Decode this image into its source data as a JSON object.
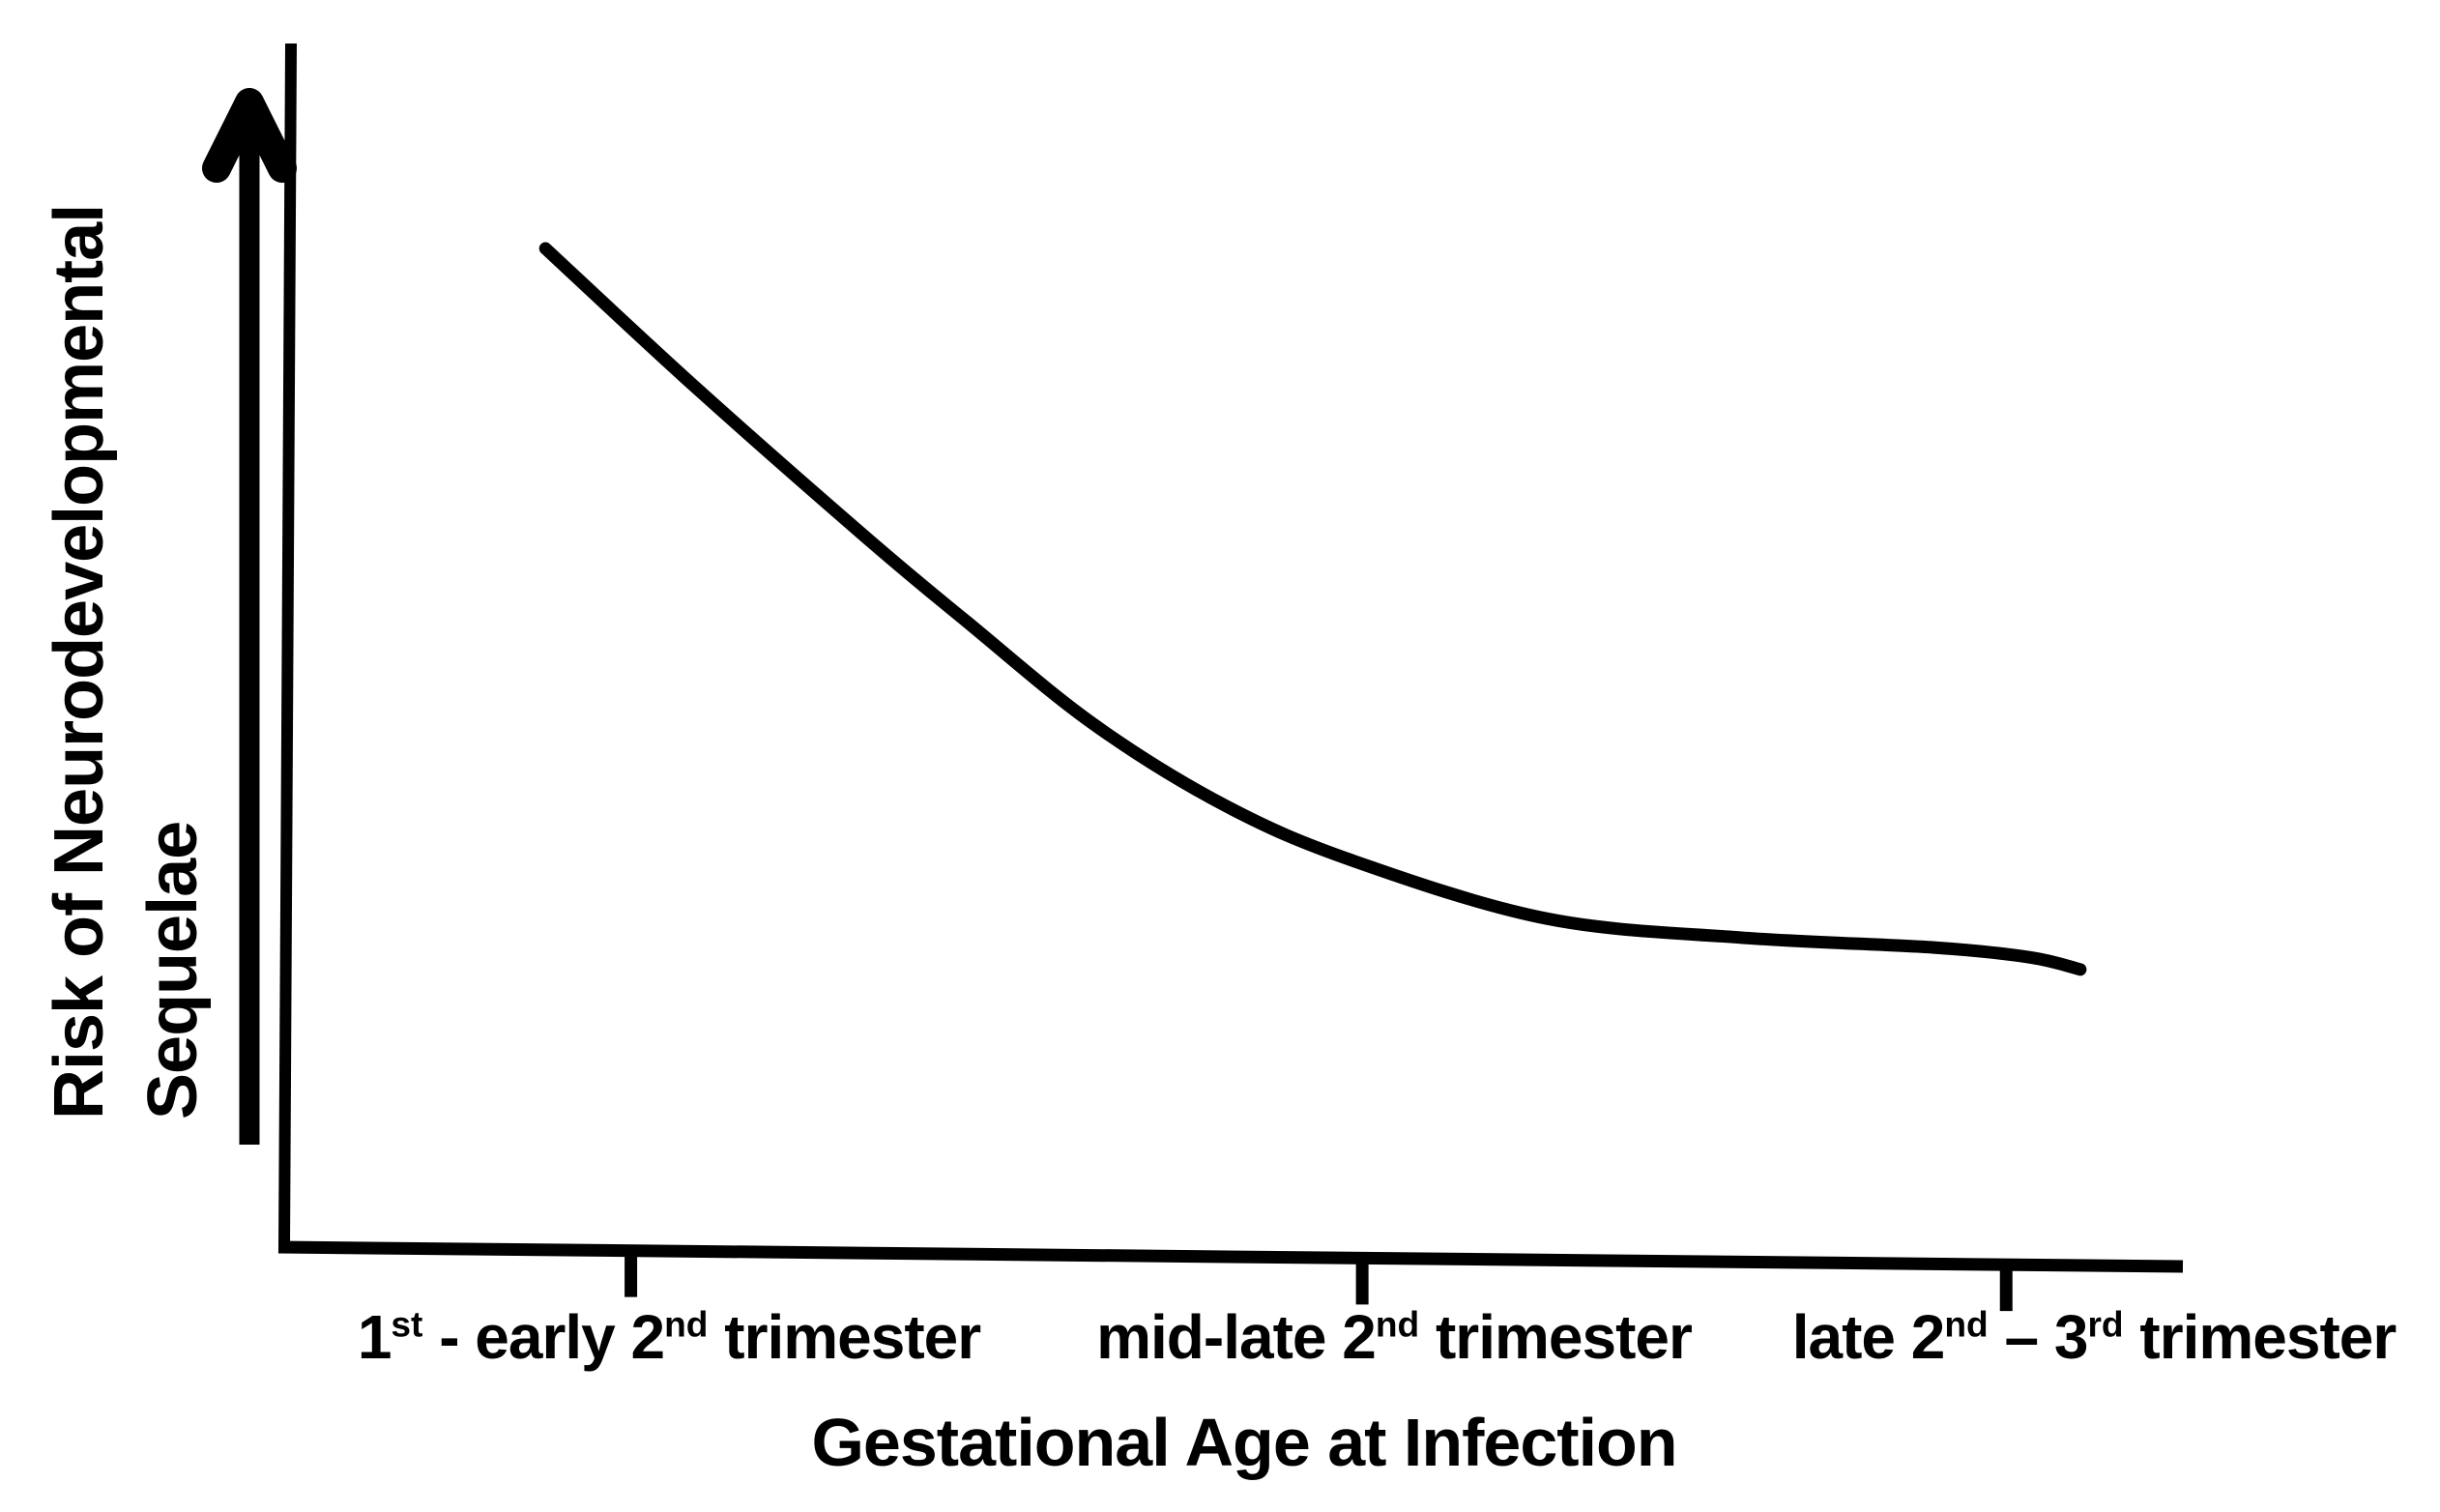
{
  "figure": {
    "background_color": "#ffffff",
    "ink_color": "#000000"
  },
  "y_axis": {
    "label_line1": "Risk of Neurodevelopmental",
    "label_line2": "Sequelae",
    "arrow_icon": "up-arrow-icon",
    "numeric_scale": false
  },
  "x_axis": {
    "title": "Gestational Age at Infection",
    "numeric_scale": false,
    "tick_labels": [
      {
        "text": "1st - early 2nd trimester",
        "parts": [
          {
            "t": "1"
          },
          {
            "t": "st",
            "sup": true
          },
          {
            "t": " - early 2"
          },
          {
            "t": "nd",
            "sup": true
          },
          {
            "t": " trimester"
          }
        ]
      },
      {
        "text": "mid-late 2nd trimester",
        "parts": [
          {
            "t": "mid-late 2"
          },
          {
            "t": "nd",
            "sup": true
          },
          {
            "t": " trimester"
          }
        ]
      },
      {
        "text": "late 2nd – 3rd trimester",
        "parts": [
          {
            "t": "late 2"
          },
          {
            "t": "nd",
            "sup": true
          },
          {
            "t": " – 3"
          },
          {
            "t": "rd",
            "sup": true
          },
          {
            "t": " trimester"
          }
        ]
      }
    ]
  },
  "chart_data": {
    "type": "line",
    "title": "",
    "xlabel": "Gestational Age at Infection",
    "ylabel": "Risk of Neurodevelopmental Sequelae",
    "legend": false,
    "grid": false,
    "axes_numeric": false,
    "description": "Qualitative sketch: risk of neurodevelopmental sequelae is highest with infection in the 1st - early 2nd trimester and declines steeply, flattening to a low plateau by the late 2nd - 3rd trimester.",
    "categories": [
      "1st - early 2nd trimester",
      "mid-late 2nd trimester",
      "late 2nd - 3rd trimester"
    ],
    "category_axis_positions": [
      0.183,
      0.568,
      0.907
    ],
    "relative_risk_at_categories": [
      0.92,
      0.39,
      0.3
    ],
    "ylim": [
      0,
      1
    ],
    "series": [
      {
        "name": "Risk of Neurodevelopmental Sequelae",
        "points": [
          {
            "t": 0.138,
            "risk": 1.0
          },
          {
            "t": 0.217,
            "risk": 0.861
          },
          {
            "t": 0.309,
            "risk": 0.707
          },
          {
            "t": 0.36,
            "risk": 0.626
          },
          {
            "t": 0.427,
            "risk": 0.523
          },
          {
            "t": 0.496,
            "risk": 0.442
          },
          {
            "t": 0.563,
            "risk": 0.387
          },
          {
            "t": 0.665,
            "risk": 0.329
          },
          {
            "t": 0.767,
            "risk": 0.31
          },
          {
            "t": 0.869,
            "risk": 0.3
          },
          {
            "t": 0.92,
            "risk": 0.29
          },
          {
            "t": 0.946,
            "risk": 0.278
          }
        ]
      }
    ]
  }
}
